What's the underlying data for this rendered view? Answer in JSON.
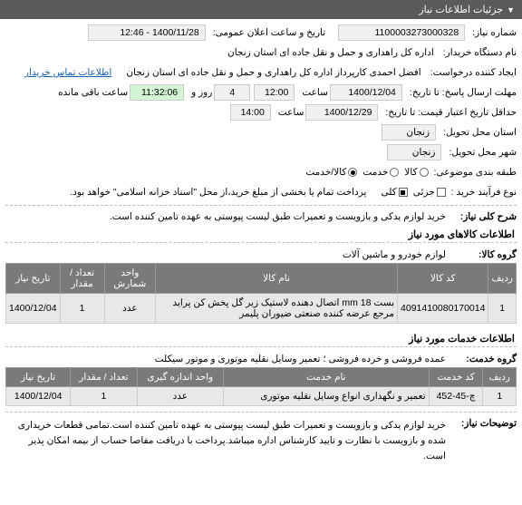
{
  "header": {
    "title": "جزئیات اطلاعات نیاز"
  },
  "fields": {
    "req_number_lbl": "شماره نیاز:",
    "req_number": "1100003273000328",
    "announce_lbl": "تاریخ و ساعت اعلان عمومی:",
    "announce_val": "1400/11/28 - 12:46",
    "buyer_org_lbl": "نام دستگاه خریدار:",
    "buyer_org": "اداره کل راهداری و حمل و نقل جاده ای استان زنجان",
    "creator_lbl": "ایجاد کننده درخواست:",
    "creator": "افضل احمدی کارپرداز اداره کل راهداری و حمل و نقل جاده ای استان زنجان",
    "contact_link": "اطلاعات تماس خریدار",
    "deadline_lbl": "مهلت ارسال پاسخ: تا تاریخ:",
    "deadline_date": "1400/12/04",
    "time1_lbl": "ساعت",
    "deadline_time": "12:00",
    "days_left": "4",
    "days_lbl": "روز و",
    "time_left": "11:32:06",
    "remain_lbl": "ساعت باقی مانده",
    "credit_lbl": "حداقل تاریخ اعتبار قیمت: تا تاریخ:",
    "credit_date": "1400/12/29",
    "credit_time": "14:00",
    "province_lbl": "استان محل تحویل:",
    "province": "زنجان",
    "city_lbl": "شهر محل تحویل:",
    "city": "زنجان",
    "category_lbl": "طبقه بندی موضوعی:",
    "cat_goods": "کالا",
    "cat_service": "خدمت",
    "cat_both": "کالا/خدمت",
    "purchase_type_lbl": "نوع فرآیند خرید :",
    "pt_partial": "جزئی",
    "pt_full": "کلی",
    "pt_note": "پرداخت تمام یا بخشی از مبلغ خرید،از محل \"اسناد خزانه اسلامی\" خواهد بود."
  },
  "general": {
    "title_lbl": "شرح کلی نیاز:",
    "title_val": "خرید لوازم یدکی و بازویست و تعمیرات طبق لیست پیوستی به عهده تامین کننده است."
  },
  "goods_section": {
    "title": "اطلاعات کالاهای مورد نیاز",
    "group_lbl": "گروه کالا:",
    "group_val": "لوازم خودرو و ماشین آلات",
    "columns": [
      "ردیف",
      "کد کالا",
      "نام کالا",
      "واحد شمارش",
      "تعداد / مقدار",
      "تاریخ نیاز"
    ],
    "rows": [
      [
        "1",
        "4091410080170014",
        "بست mm 18 اتصال دهنده لاستیک زیر گل پخش کن پراید مرجع عرضه کننده صنعتی ضیوران پلیمر",
        "عدد",
        "1",
        "1400/12/04"
      ]
    ]
  },
  "service_section": {
    "title": "اطلاعات خدمات مورد نیاز",
    "group_lbl": "گروه خدمت:",
    "group_val": "عمده فروشی و خرده فروشی ؛ تعمیر وسایل نقلیه موتوری و موتور سیکلت",
    "columns": [
      "ردیف",
      "کد خدمت",
      "نام خدمت",
      "واحد اندازه گیری",
      "تعداد / مقدار",
      "تاریخ نیاز"
    ],
    "rows": [
      [
        "1",
        "چ-45-452",
        "تعمیر و نگهداری انواع وسایل نقلیه موتوری",
        "عدد",
        "1",
        "1400/12/04"
      ]
    ]
  },
  "notes": {
    "lbl": "توضیحات نیاز:",
    "val": "خرید لوازم یدکی و بازویست و تعمیرات طبق لیست پیوستی به عهده تامین کننده است.تمامی قطعات خریداری شده و بازویست با نظارت و تایید کارشناس اداره میباشد.پرداخت با دریافت مفاصا حساب از بیمه امکان پذیر است."
  }
}
